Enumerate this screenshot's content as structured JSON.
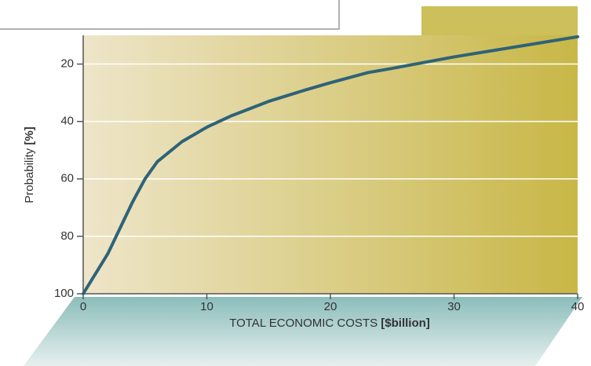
{
  "chart_data": {
    "type": "line",
    "xlabel": "TOTAL ECONOMIC COSTS",
    "xlabel_unit": "[$billion]",
    "ylabel": "Probability",
    "ylabel_unit": "[%]",
    "x": [
      0,
      1,
      2,
      3,
      4,
      5,
      6,
      8,
      10,
      12,
      15,
      18,
      20,
      23,
      25,
      30,
      35,
      40
    ],
    "series": [
      {
        "color": "#2e6378",
        "values": [
          100,
          93,
          86,
          77,
          68,
          60,
          54,
          47,
          42,
          38,
          33,
          29,
          26.5,
          23,
          21.5,
          17.5,
          14,
          10.5
        ]
      }
    ],
    "xlim": [
      0,
      40
    ],
    "xticks": [
      0,
      10,
      20,
      30,
      40
    ],
    "ylim": [
      100,
      10
    ],
    "yticks": [
      20,
      40,
      60,
      80,
      100
    ],
    "grid": true
  }
}
